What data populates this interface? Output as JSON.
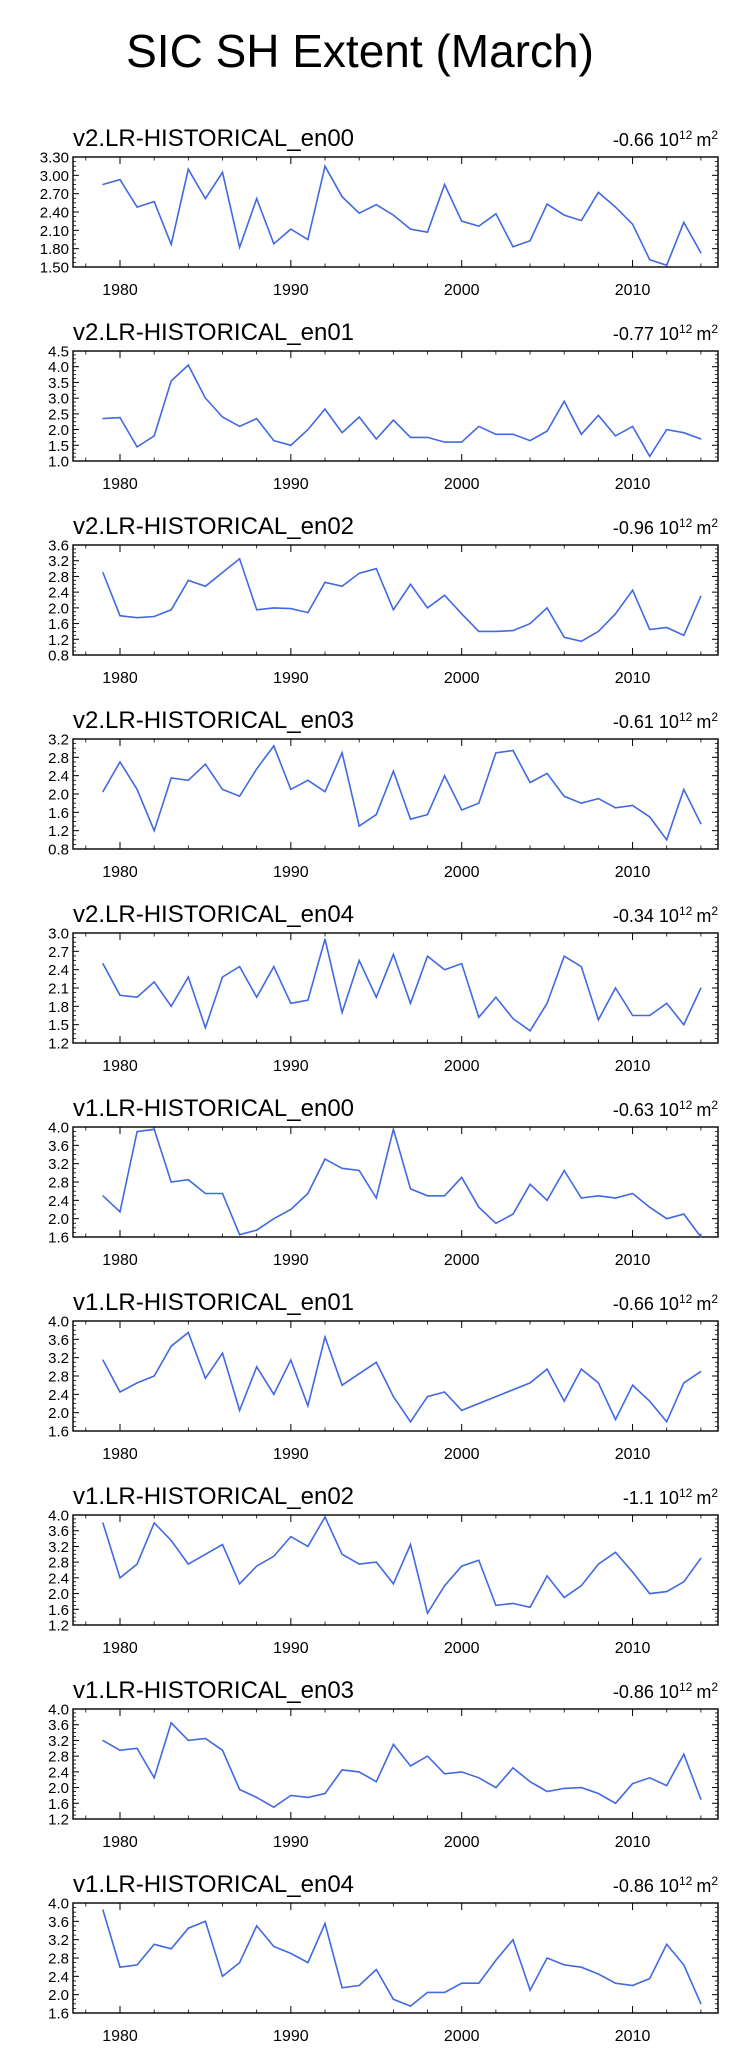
{
  "figure_title": "SIC SH Extent (March)",
  "units_base": "10",
  "units_exp": "12",
  "units_suffix": "m",
  "units_sup2": "2",
  "colors": {
    "line": "#4169e1",
    "text": "#000000",
    "axis": "#000000",
    "background": "#ffffff"
  },
  "chart_data": [
    {
      "type": "line",
      "title": "v2.LR-HISTORICAL_en00",
      "trend_label": "-0.66",
      "x": [
        1979,
        1980,
        1981,
        1982,
        1983,
        1984,
        1985,
        1986,
        1987,
        1988,
        1989,
        1990,
        1991,
        1992,
        1993,
        1994,
        1995,
        1996,
        1997,
        1998,
        1999,
        2000,
        2001,
        2002,
        2003,
        2004,
        2005,
        2006,
        2007,
        2008,
        2009,
        2010,
        2011,
        2012,
        2013,
        2014
      ],
      "values": [
        2.85,
        2.93,
        2.48,
        2.57,
        1.87,
        3.1,
        2.62,
        3.05,
        1.82,
        2.62,
        1.88,
        2.12,
        1.95,
        3.15,
        2.65,
        2.38,
        2.52,
        2.35,
        2.12,
        2.07,
        2.85,
        2.25,
        2.17,
        2.37,
        1.83,
        1.93,
        2.53,
        2.35,
        2.26,
        2.72,
        2.48,
        2.2,
        1.62,
        1.53,
        2.23,
        1.73
      ],
      "ylim": [
        1.5,
        3.3
      ],
      "yticks": [
        "1.50",
        "1.80",
        "2.10",
        "2.40",
        "2.70",
        "3.00",
        "3.30"
      ],
      "xticks": [
        "1980",
        "1990",
        "2000",
        "2010"
      ]
    },
    {
      "type": "line",
      "title": "v2.LR-HISTORICAL_en01",
      "trend_label": "-0.77",
      "x": [
        1979,
        1980,
        1981,
        1982,
        1983,
        1984,
        1985,
        1986,
        1987,
        1988,
        1989,
        1990,
        1991,
        1992,
        1993,
        1994,
        1995,
        1996,
        1997,
        1998,
        1999,
        2000,
        2001,
        2002,
        2003,
        2004,
        2005,
        2006,
        2007,
        2008,
        2009,
        2010,
        2011,
        2012,
        2013,
        2014
      ],
      "values": [
        2.35,
        2.38,
        1.45,
        1.8,
        3.55,
        4.05,
        3.0,
        2.4,
        2.1,
        2.35,
        1.65,
        1.5,
        2.0,
        2.65,
        1.9,
        2.4,
        1.7,
        2.3,
        1.75,
        1.75,
        1.6,
        1.6,
        2.1,
        1.85,
        1.85,
        1.65,
        1.95,
        2.9,
        1.85,
        2.45,
        1.8,
        2.1,
        1.15,
        2.0,
        1.9,
        1.7
      ],
      "ylim": [
        1.0,
        4.5
      ],
      "yticks": [
        "1.0",
        "1.5",
        "2.0",
        "2.5",
        "3.0",
        "3.5",
        "4.0",
        "4.5"
      ],
      "xticks": [
        "1980",
        "1990",
        "2000",
        "2010"
      ]
    },
    {
      "type": "line",
      "title": "v2.LR-HISTORICAL_en02",
      "trend_label": "-0.96",
      "x": [
        1979,
        1980,
        1981,
        1982,
        1983,
        1984,
        1985,
        1986,
        1987,
        1988,
        1989,
        1990,
        1991,
        1992,
        1993,
        1994,
        1995,
        1996,
        1997,
        1998,
        1999,
        2000,
        2001,
        2002,
        2003,
        2004,
        2005,
        2006,
        2007,
        2008,
        2009,
        2010,
        2011,
        2012,
        2013,
        2014
      ],
      "values": [
        2.9,
        1.8,
        1.75,
        1.78,
        1.95,
        2.7,
        2.55,
        2.9,
        3.25,
        1.95,
        2.0,
        1.98,
        1.88,
        2.65,
        2.55,
        2.88,
        3.0,
        1.95,
        2.6,
        2.0,
        2.32,
        1.85,
        1.4,
        1.4,
        1.42,
        1.6,
        2.0,
        1.25,
        1.15,
        1.4,
        1.85,
        2.45,
        1.45,
        1.5,
        1.3,
        2.3
      ],
      "ylim": [
        0.8,
        3.6
      ],
      "yticks": [
        "0.8",
        "1.2",
        "1.6",
        "2.0",
        "2.4",
        "2.8",
        "3.2",
        "3.6"
      ],
      "xticks": [
        "1980",
        "1990",
        "2000",
        "2010"
      ]
    },
    {
      "type": "line",
      "title": "v2.LR-HISTORICAL_en03",
      "trend_label": "-0.61",
      "x": [
        1979,
        1980,
        1981,
        1982,
        1983,
        1984,
        1985,
        1986,
        1987,
        1988,
        1989,
        1990,
        1991,
        1992,
        1993,
        1994,
        1995,
        1996,
        1997,
        1998,
        1999,
        2000,
        2001,
        2002,
        2003,
        2004,
        2005,
        2006,
        2007,
        2008,
        2009,
        2010,
        2011,
        2012,
        2013,
        2014
      ],
      "values": [
        2.05,
        2.7,
        2.1,
        1.2,
        2.35,
        2.3,
        2.65,
        2.1,
        1.95,
        2.55,
        3.05,
        2.1,
        2.3,
        2.05,
        2.9,
        1.3,
        1.55,
        2.5,
        1.45,
        1.55,
        2.4,
        1.65,
        1.8,
        2.9,
        2.95,
        2.25,
        2.45,
        1.95,
        1.8,
        1.9,
        1.7,
        1.75,
        1.5,
        1.0,
        2.1,
        1.35
      ],
      "ylim": [
        0.8,
        3.2
      ],
      "yticks": [
        "0.8",
        "1.2",
        "1.6",
        "2.0",
        "2.4",
        "2.8",
        "3.2"
      ],
      "xticks": [
        "1980",
        "1990",
        "2000",
        "2010"
      ]
    },
    {
      "type": "line",
      "title": "v2.LR-HISTORICAL_en04",
      "trend_label": "-0.34",
      "x": [
        1979,
        1980,
        1981,
        1982,
        1983,
        1984,
        1985,
        1986,
        1987,
        1988,
        1989,
        1990,
        1991,
        1992,
        1993,
        1994,
        1995,
        1996,
        1997,
        1998,
        1999,
        2000,
        2001,
        2002,
        2003,
        2004,
        2005,
        2006,
        2007,
        2008,
        2009,
        2010,
        2011,
        2012,
        2013,
        2014
      ],
      "values": [
        2.5,
        1.98,
        1.95,
        2.2,
        1.8,
        2.28,
        1.45,
        2.28,
        2.45,
        1.95,
        2.45,
        1.85,
        1.9,
        2.9,
        1.7,
        2.55,
        1.95,
        2.65,
        1.85,
        2.62,
        2.4,
        2.5,
        1.62,
        1.95,
        1.6,
        1.4,
        1.85,
        2.62,
        2.45,
        1.58,
        2.1,
        1.65,
        1.65,
        1.85,
        1.5,
        2.1
      ],
      "ylim": [
        1.2,
        3.0
      ],
      "yticks": [
        "1.2",
        "1.5",
        "1.8",
        "2.1",
        "2.4",
        "2.7",
        "3.0"
      ],
      "xticks": [
        "1980",
        "1990",
        "2000",
        "2010"
      ]
    },
    {
      "type": "line",
      "title": "v1.LR-HISTORICAL_en00",
      "trend_label": "-0.63",
      "x": [
        1979,
        1980,
        1981,
        1982,
        1983,
        1984,
        1985,
        1986,
        1987,
        1988,
        1989,
        1990,
        1991,
        1992,
        1993,
        1994,
        1995,
        1996,
        1997,
        1998,
        1999,
        2000,
        2001,
        2002,
        2003,
        2004,
        2005,
        2006,
        2007,
        2008,
        2009,
        2010,
        2011,
        2012,
        2013,
        2014
      ],
      "values": [
        2.5,
        2.15,
        3.9,
        3.95,
        2.8,
        2.85,
        2.55,
        2.55,
        1.65,
        1.75,
        2.0,
        2.2,
        2.55,
        3.3,
        3.1,
        3.05,
        2.45,
        3.95,
        2.65,
        2.5,
        2.5,
        2.9,
        2.25,
        1.9,
        2.1,
        2.75,
        2.4,
        3.05,
        2.45,
        2.5,
        2.45,
        2.55,
        2.25,
        2.0,
        2.1,
        1.6
      ],
      "ylim": [
        1.6,
        4.0
      ],
      "yticks": [
        "1.6",
        "2.0",
        "2.4",
        "2.8",
        "3.2",
        "3.6",
        "4.0"
      ],
      "xticks": [
        "1980",
        "1990",
        "2000",
        "2010"
      ]
    },
    {
      "type": "line",
      "title": "v1.LR-HISTORICAL_en01",
      "trend_label": "-0.66",
      "x": [
        1979,
        1980,
        1981,
        1982,
        1983,
        1984,
        1985,
        1986,
        1987,
        1988,
        1989,
        1990,
        1991,
        1992,
        1993,
        1994,
        1995,
        1996,
        1997,
        1998,
        1999,
        2000,
        2001,
        2002,
        2003,
        2004,
        2005,
        2006,
        2007,
        2008,
        2009,
        2010,
        2011,
        2012,
        2013,
        2014
      ],
      "values": [
        3.15,
        2.45,
        2.65,
        2.8,
        3.45,
        3.75,
        2.75,
        3.3,
        2.05,
        3.0,
        2.4,
        3.15,
        2.15,
        3.65,
        2.6,
        2.85,
        3.1,
        2.35,
        1.8,
        2.35,
        2.45,
        2.05,
        2.2,
        2.35,
        2.5,
        2.65,
        2.95,
        2.25,
        2.95,
        2.65,
        1.85,
        2.6,
        2.25,
        1.8,
        2.65,
        2.9
      ],
      "ylim": [
        1.6,
        4.0
      ],
      "yticks": [
        "1.6",
        "2.0",
        "2.4",
        "2.8",
        "3.2",
        "3.6",
        "4.0"
      ],
      "xticks": [
        "1980",
        "1990",
        "2000",
        "2010"
      ]
    },
    {
      "type": "line",
      "title": "v1.LR-HISTORICAL_en02",
      "trend_label": "-1.1",
      "x": [
        1979,
        1980,
        1981,
        1982,
        1983,
        1984,
        1985,
        1986,
        1987,
        1988,
        1989,
        1990,
        1991,
        1992,
        1993,
        1994,
        1995,
        1996,
        1997,
        1998,
        1999,
        2000,
        2001,
        2002,
        2003,
        2004,
        2005,
        2006,
        2007,
        2008,
        2009,
        2010,
        2011,
        2012,
        2013,
        2014
      ],
      "values": [
        3.8,
        2.4,
        2.75,
        3.8,
        3.35,
        2.75,
        3.0,
        3.25,
        2.25,
        2.7,
        2.95,
        3.45,
        3.2,
        3.95,
        3.0,
        2.75,
        2.8,
        2.25,
        3.25,
        1.5,
        2.2,
        2.7,
        2.85,
        1.7,
        1.75,
        1.65,
        2.45,
        1.9,
        2.2,
        2.75,
        3.05,
        2.55,
        2.0,
        2.05,
        2.3,
        2.9
      ],
      "ylim": [
        1.2,
        4.0
      ],
      "yticks": [
        "1.2",
        "1.6",
        "2.0",
        "2.4",
        "2.8",
        "3.2",
        "3.6",
        "4.0"
      ],
      "xticks": [
        "1980",
        "1990",
        "2000",
        "2010"
      ]
    },
    {
      "type": "line",
      "title": "v1.LR-HISTORICAL_en03",
      "trend_label": "-0.86",
      "x": [
        1979,
        1980,
        1981,
        1982,
        1983,
        1984,
        1985,
        1986,
        1987,
        1988,
        1989,
        1990,
        1991,
        1992,
        1993,
        1994,
        1995,
        1996,
        1997,
        1998,
        1999,
        2000,
        2001,
        2002,
        2003,
        2004,
        2005,
        2006,
        2007,
        2008,
        2009,
        2010,
        2011,
        2012,
        2013,
        2014
      ],
      "values": [
        3.2,
        2.95,
        3.0,
        2.25,
        3.65,
        3.2,
        3.25,
        2.95,
        1.95,
        1.75,
        1.5,
        1.8,
        1.75,
        1.85,
        2.45,
        2.4,
        2.15,
        3.1,
        2.55,
        2.8,
        2.35,
        2.4,
        2.25,
        2.0,
        2.5,
        2.15,
        1.9,
        1.98,
        2.0,
        1.85,
        1.6,
        2.1,
        2.25,
        2.05,
        2.85,
        1.7
      ],
      "ylim": [
        1.2,
        4.0
      ],
      "yticks": [
        "1.2",
        "1.6",
        "2.0",
        "2.4",
        "2.8",
        "3.2",
        "3.6",
        "4.0"
      ],
      "xticks": [
        "1980",
        "1990",
        "2000",
        "2010"
      ]
    },
    {
      "type": "line",
      "title": "v1.LR-HISTORICAL_en04",
      "trend_label": "-0.86",
      "x": [
        1979,
        1980,
        1981,
        1982,
        1983,
        1984,
        1985,
        1986,
        1987,
        1988,
        1989,
        1990,
        1991,
        1992,
        1993,
        1994,
        1995,
        1996,
        1997,
        1998,
        1999,
        2000,
        2001,
        2002,
        2003,
        2004,
        2005,
        2006,
        2007,
        2008,
        2009,
        2010,
        2011,
        2012,
        2013,
        2014
      ],
      "values": [
        3.85,
        2.6,
        2.65,
        3.1,
        3.0,
        3.45,
        3.6,
        2.4,
        2.7,
        3.5,
        3.05,
        2.9,
        2.7,
        3.55,
        2.15,
        2.2,
        2.55,
        1.9,
        1.75,
        2.05,
        2.05,
        2.25,
        2.25,
        2.75,
        3.2,
        2.1,
        2.8,
        2.65,
        2.6,
        2.45,
        2.25,
        2.2,
        2.35,
        3.1,
        2.65,
        1.8
      ],
      "ylim": [
        1.6,
        4.0
      ],
      "yticks": [
        "1.6",
        "2.0",
        "2.4",
        "2.8",
        "3.2",
        "3.6",
        "4.0"
      ],
      "xticks": [
        "1980",
        "1990",
        "2000",
        "2010"
      ]
    }
  ]
}
